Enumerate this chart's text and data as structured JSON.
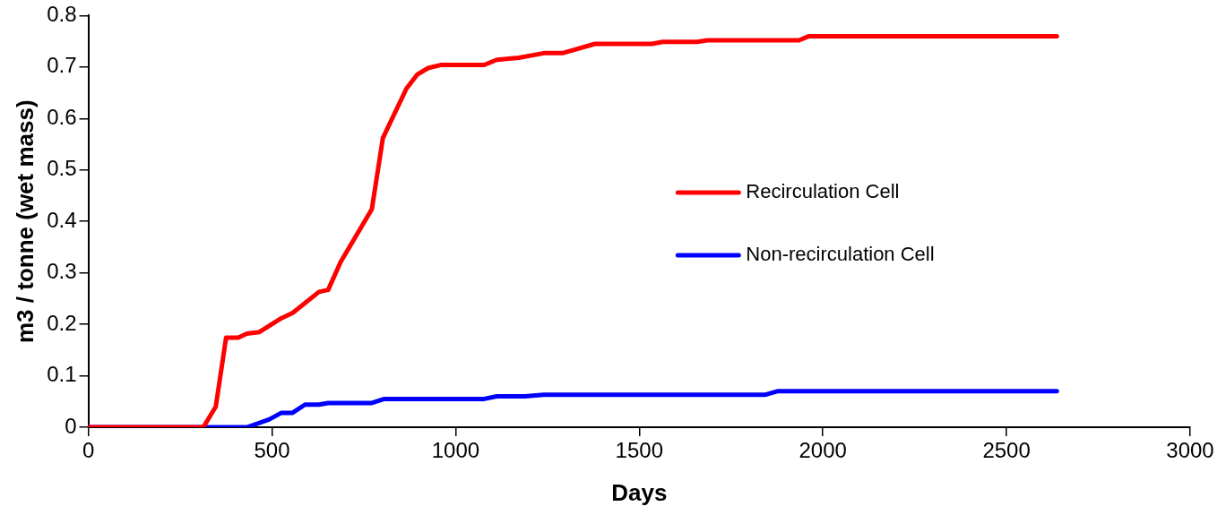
{
  "chart_data": {
    "type": "line",
    "xlabel": "Days",
    "ylabel": "m3 / tonne (wet mass)",
    "xlim": [
      0,
      3000
    ],
    "xticks": [
      0,
      500,
      1000,
      1500,
      2000,
      2500,
      3000
    ],
    "ylim": [
      0,
      0.8
    ],
    "yticks": [
      0,
      0.1,
      0.2,
      0.3,
      0.4,
      0.5,
      0.6,
      0.7,
      0.8
    ],
    "grid": false,
    "legend": "right",
    "marker": "none",
    "line_style": "solid",
    "series": [
      {
        "name": "Recirculation Cell",
        "color": "#ff0000",
        "x": [
          0,
          313,
          347,
          375,
          408,
          432,
          466,
          526,
          556,
          628,
          653,
          687,
          772,
          802,
          866,
          895,
          925,
          959,
          1078,
          1112,
          1172,
          1240,
          1291,
          1379,
          1534,
          1564,
          1657,
          1686,
          1935,
          1962,
          2637
        ],
        "values": [
          0,
          0,
          0.04,
          0.174,
          0.174,
          0.182,
          0.185,
          0.212,
          0.222,
          0.263,
          0.267,
          0.321,
          0.424,
          0.562,
          0.658,
          0.685,
          0.698,
          0.704,
          0.704,
          0.714,
          0.718,
          0.727,
          0.727,
          0.745,
          0.745,
          0.749,
          0.749,
          0.752,
          0.752,
          0.76,
          0.76
        ]
      },
      {
        "name": "Non-recirculation Cell",
        "color": "#0000ff",
        "x": [
          0,
          432,
          492,
          526,
          556,
          590,
          628,
          653,
          772,
          806,
          1078,
          1112,
          1189,
          1240,
          1842,
          1876,
          2637
        ],
        "values": [
          0,
          0,
          0.015,
          0.028,
          0.028,
          0.044,
          0.044,
          0.047,
          0.047,
          0.055,
          0.055,
          0.06,
          0.06,
          0.063,
          0.063,
          0.07,
          0.07
        ]
      }
    ]
  }
}
